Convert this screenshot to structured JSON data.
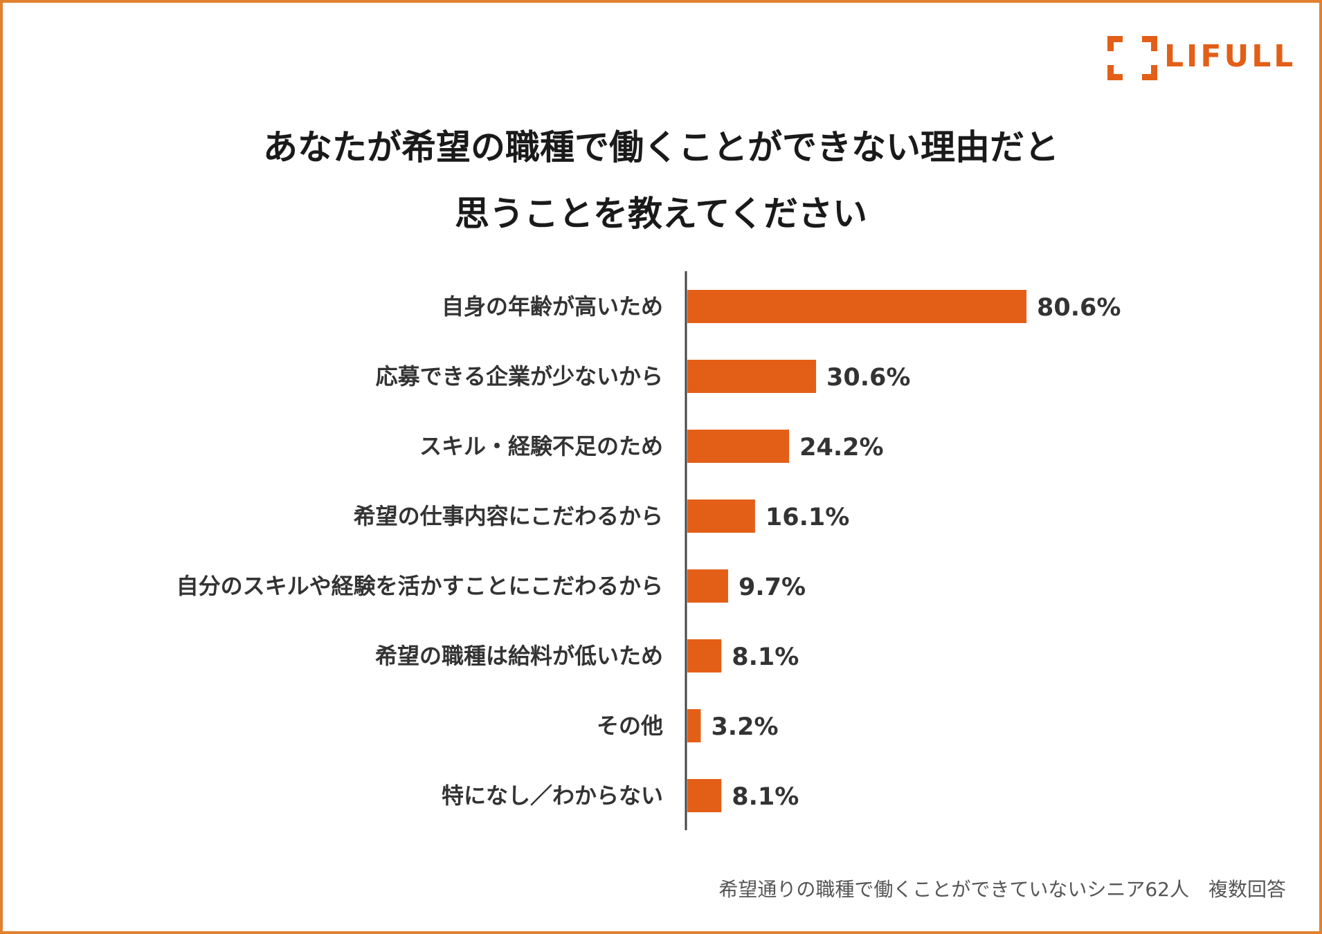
{
  "brand": {
    "name": "LIFULL",
    "color": "#e35f17",
    "frame_color": "#e0812f"
  },
  "chart_data": {
    "type": "bar",
    "orientation": "horizontal",
    "title_lines": [
      "あなたが希望の職種で働くことができない理由だと",
      "思うことを教えてください"
    ],
    "categories": [
      "自身の年齢が高いため",
      "応募できる企業が少ないから",
      "スキル・経験不足のため",
      "希望の仕事内容にこだわるから",
      "自分のスキルや経験を活かすことにこだわるから",
      "希望の職種は給料が低いため",
      "その他",
      "特になし／わからない"
    ],
    "values": [
      80.6,
      30.6,
      24.2,
      16.1,
      9.7,
      8.1,
      3.2,
      8.1
    ],
    "value_labels": [
      "80.6%",
      "30.6%",
      "24.2%",
      "16.1%",
      "9.7%",
      "8.1%",
      "3.2%",
      "8.1%"
    ],
    "unit": "%",
    "bar_color": "#e35f17",
    "grid": false,
    "legend": false
  },
  "footnote": "希望通りの職種で働くことができていないシニア62人　複数回答"
}
